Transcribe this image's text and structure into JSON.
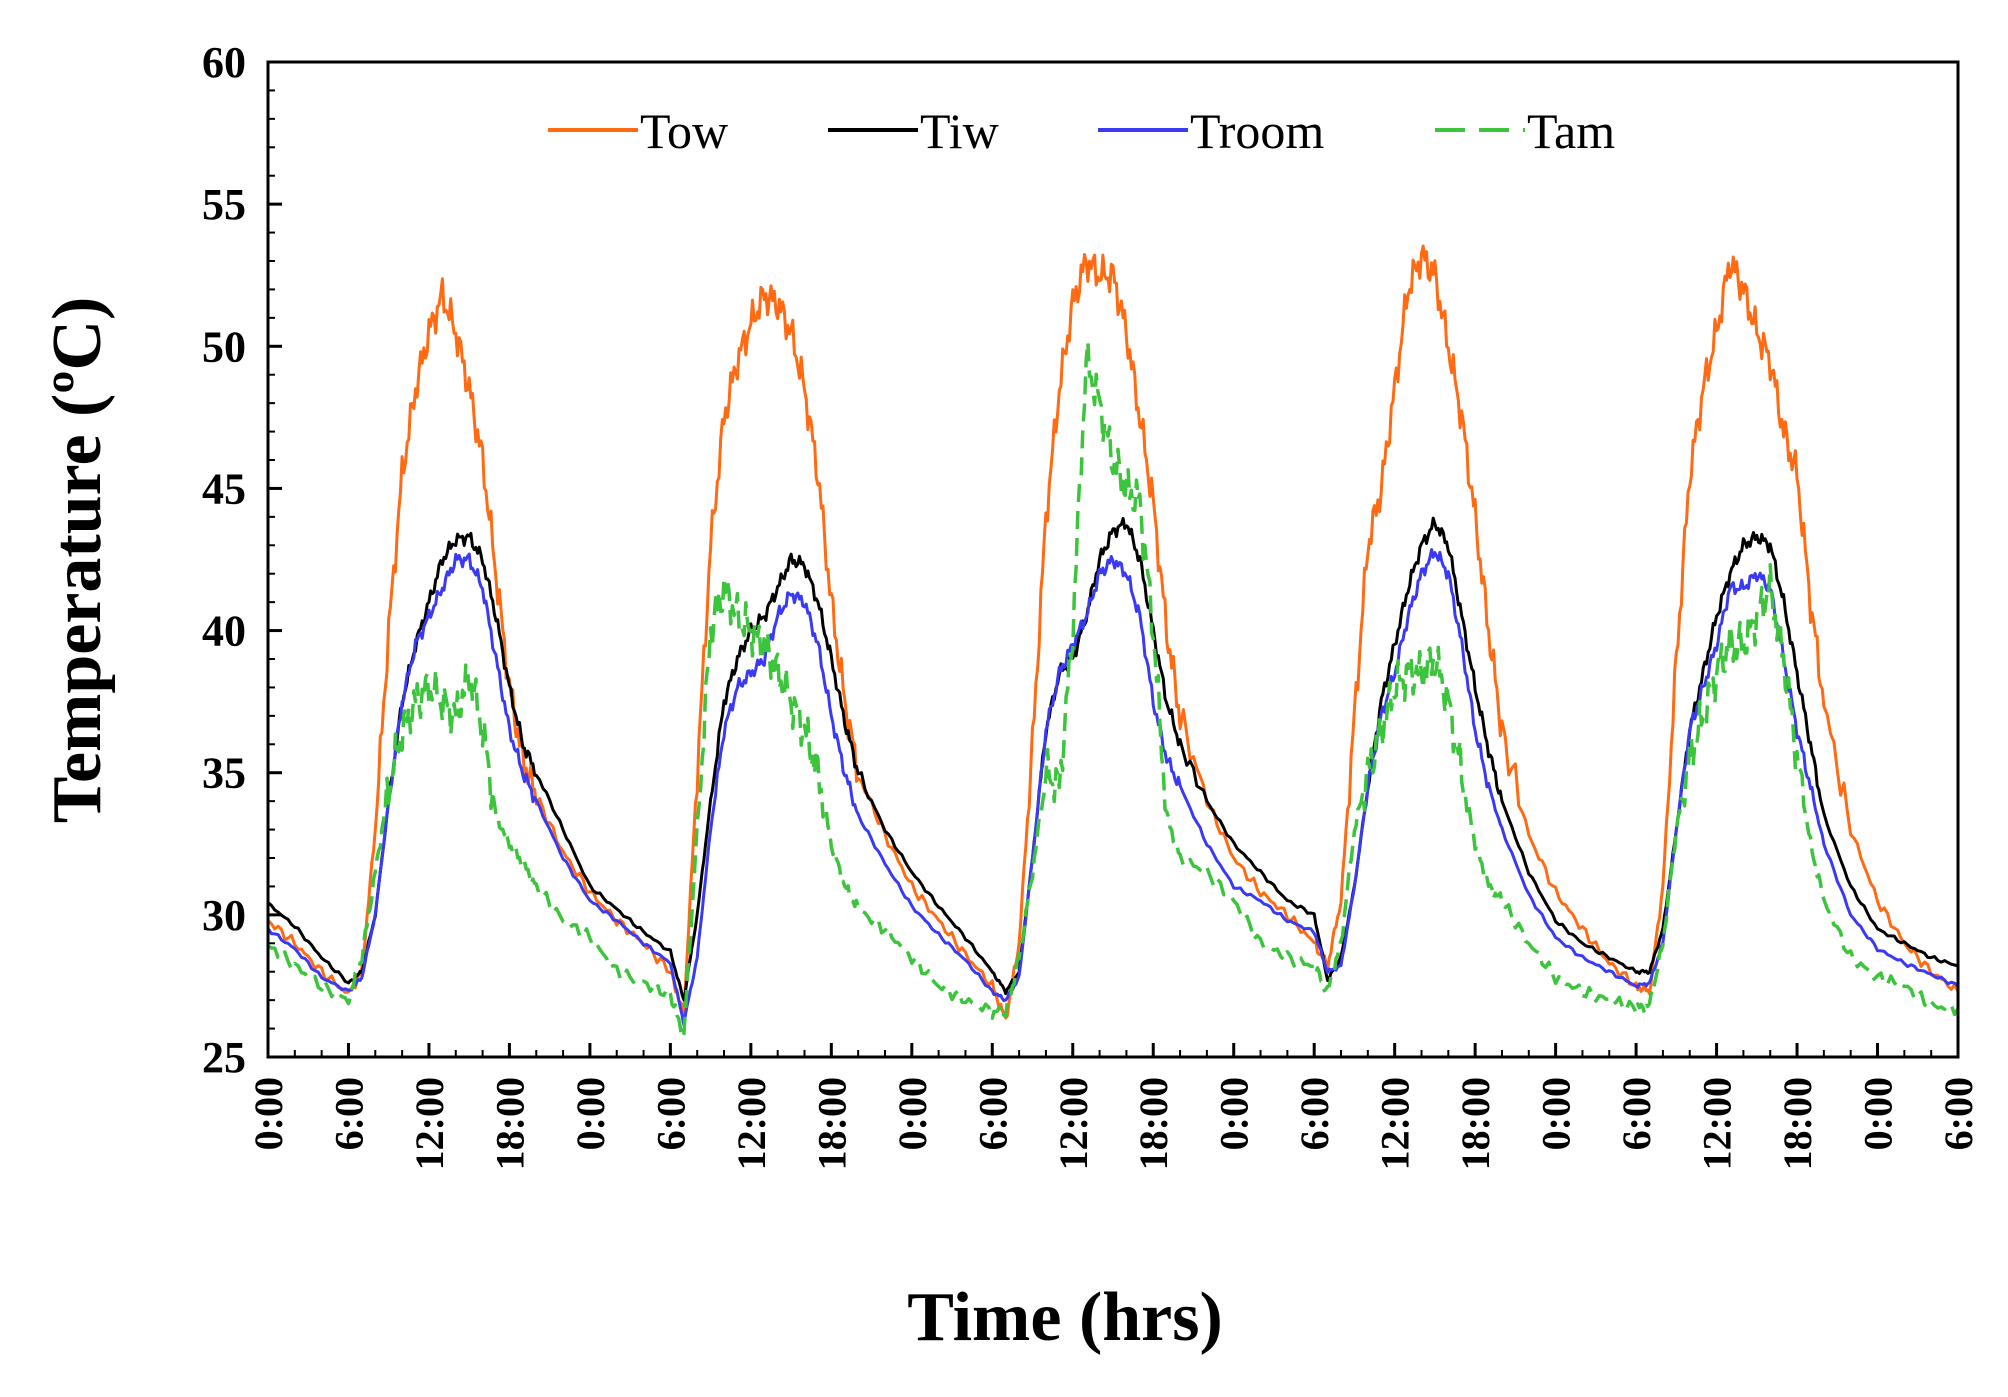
{
  "chart_data": {
    "type": "line",
    "xlabel": "Time (hrs)",
    "ylabel": "Temperature (ºC)",
    "ylim": [
      25,
      60
    ],
    "xlim_hours": [
      0,
      126
    ],
    "y_ticks": [
      "25",
      "30",
      "35",
      "40",
      "45",
      "50",
      "55",
      "60"
    ],
    "x_ticks": [
      "0:00",
      "6:00",
      "12:00",
      "18:00",
      "0:00",
      "6:00",
      "12:00",
      "18:00",
      "0:00",
      "6:00",
      "12:00",
      "18:00",
      "0:00",
      "6:00",
      "12:00",
      "18:00",
      "0:00",
      "6:00",
      "12:00",
      "18:00",
      "0:00",
      "6:00"
    ],
    "grid": false,
    "legend_position": "top",
    "x": [
      0,
      2,
      4,
      6,
      7,
      8,
      9,
      10,
      11,
      12,
      13,
      14,
      15,
      16,
      17,
      18,
      19,
      20,
      22,
      24,
      26,
      28,
      30,
      31,
      32,
      33,
      34,
      35,
      36,
      37,
      38,
      39,
      40,
      41,
      42,
      43,
      44,
      46,
      48,
      50,
      52,
      54,
      55,
      56,
      57,
      58,
      59,
      60,
      61,
      62,
      63,
      64,
      65,
      66,
      67,
      68,
      70,
      72,
      74,
      76,
      78,
      79,
      80,
      81,
      82,
      83,
      84,
      85,
      86,
      87,
      88,
      89,
      90,
      91,
      92,
      94,
      96,
      98,
      100,
      102,
      103,
      104,
      105,
      106,
      107,
      108,
      109,
      110,
      111,
      112,
      113,
      114,
      115,
      116,
      118,
      120,
      122,
      124,
      126
    ],
    "series": [
      {
        "name": "Tow",
        "color": "#ff6a13",
        "dash": "solid",
        "values": [
          29.8,
          29.0,
          28.0,
          27.2,
          28.0,
          33.0,
          40.0,
          45.5,
          48.5,
          50.5,
          51.8,
          50.5,
          48.5,
          46.0,
          42.0,
          38.0,
          35.5,
          34.2,
          32.2,
          30.8,
          29.8,
          29.0,
          28.0,
          26.5,
          35.0,
          43.0,
          47.5,
          49.5,
          50.8,
          51.8,
          51.5,
          50.5,
          48.5,
          45.5,
          41.0,
          37.5,
          35.0,
          32.8,
          31.0,
          29.8,
          28.6,
          27.5,
          26.3,
          29.0,
          36.0,
          44.0,
          48.5,
          51.5,
          53.0,
          52.5,
          52.5,
          50.5,
          47.5,
          44.5,
          40.0,
          37.0,
          34.0,
          32.0,
          30.8,
          30.0,
          29.0,
          28.2,
          30.5,
          37.0,
          43.0,
          45.0,
          48.5,
          52.0,
          53.2,
          52.5,
          50.0,
          47.5,
          44.0,
          40.0,
          36.5,
          32.8,
          30.8,
          29.5,
          28.3,
          27.5,
          27.3,
          31.0,
          39.0,
          45.5,
          48.5,
          50.5,
          53.0,
          52.0,
          50.5,
          49.5,
          47.0,
          45.5,
          41.0,
          37.5,
          33.0,
          30.5,
          29.0,
          28.0,
          27.3
        ]
      },
      {
        "name": "Tiw",
        "color": "#000000",
        "dash": "solid",
        "values": [
          30.4,
          29.6,
          28.5,
          27.6,
          28.0,
          30.0,
          34.0,
          37.5,
          39.5,
          41.0,
          42.5,
          43.2,
          43.3,
          42.5,
          40.5,
          38.0,
          36.0,
          35.0,
          33.0,
          31.0,
          30.2,
          29.4,
          28.7,
          27.0,
          30.0,
          34.0,
          37.5,
          39.0,
          40.0,
          40.5,
          41.5,
          42.5,
          42.3,
          41.0,
          39.0,
          36.8,
          35.0,
          33.0,
          31.5,
          30.3,
          29.2,
          28.0,
          27.3,
          28.0,
          32.0,
          36.5,
          38.5,
          39.0,
          40.5,
          42.5,
          43.5,
          43.8,
          42.5,
          40.0,
          37.5,
          36.0,
          34.0,
          32.5,
          31.5,
          30.5,
          30.0,
          27.7,
          28.5,
          31.0,
          34.5,
          37.5,
          39.5,
          41.5,
          43.0,
          43.8,
          43.0,
          40.5,
          38.0,
          35.8,
          34.0,
          31.5,
          29.8,
          29.0,
          28.5,
          28.0,
          28.0,
          29.5,
          33.0,
          36.5,
          38.5,
          40.5,
          42.0,
          43.0,
          43.3,
          43.0,
          41.0,
          38.5,
          36.0,
          33.5,
          31.0,
          29.5,
          29.0,
          28.5,
          28.2
        ]
      },
      {
        "name": "Troom",
        "color": "#3a3af5",
        "dash": "solid",
        "values": [
          29.5,
          28.8,
          27.8,
          27.3,
          27.8,
          30.0,
          34.0,
          37.5,
          39.5,
          40.5,
          41.5,
          42.5,
          42.5,
          41.5,
          39.0,
          36.5,
          35.0,
          34.0,
          32.0,
          30.5,
          29.8,
          29.0,
          28.3,
          26.2,
          28.5,
          33.0,
          36.5,
          38.0,
          38.5,
          39.0,
          40.5,
          41.3,
          41.0,
          39.5,
          37.0,
          35.0,
          33.5,
          31.8,
          30.3,
          29.3,
          28.4,
          27.3,
          27.0,
          27.8,
          32.0,
          36.5,
          38.5,
          39.5,
          40.5,
          42.0,
          42.5,
          42.0,
          40.5,
          37.5,
          35.5,
          34.5,
          32.5,
          31.0,
          30.5,
          29.8,
          29.4,
          28.0,
          28.2,
          31.0,
          34.5,
          37.0,
          38.5,
          40.5,
          42.0,
          42.8,
          42.0,
          39.5,
          36.5,
          34.5,
          33.0,
          30.7,
          29.2,
          28.5,
          28.0,
          27.5,
          27.6,
          29.0,
          33.0,
          36.5,
          38.0,
          39.5,
          41.5,
          41.5,
          42.0,
          41.5,
          39.0,
          36.5,
          34.5,
          32.5,
          30.0,
          28.8,
          28.3,
          27.9,
          27.5
        ]
      },
      {
        "name": "Tam",
        "color": "#3cc43c",
        "dash": "dashed",
        "values": [
          28.9,
          28.2,
          27.5,
          27.0,
          28.5,
          31.5,
          34.5,
          36.5,
          37.5,
          38.0,
          37.5,
          37.0,
          38.5,
          36.5,
          33.5,
          32.5,
          31.8,
          31.0,
          29.8,
          29.2,
          28.0,
          27.6,
          27.2,
          25.7,
          33.0,
          40.0,
          41.5,
          40.5,
          40.0,
          39.5,
          38.5,
          37.5,
          36.5,
          35.0,
          32.5,
          31.0,
          30.2,
          29.5,
          28.5,
          27.5,
          27.0,
          26.6,
          26.5,
          28.5,
          31.5,
          35.0,
          34.5,
          40.0,
          49.5,
          48.0,
          46.0,
          45.0,
          44.5,
          40.0,
          33.5,
          32.0,
          31.5,
          30.5,
          29.0,
          28.5,
          28.2,
          27.3,
          29.0,
          33.0,
          35.0,
          36.5,
          38.0,
          38.5,
          38.5,
          39.0,
          37.5,
          35.0,
          32.5,
          31.0,
          30.5,
          29.0,
          27.8,
          27.3,
          27.0,
          26.7,
          26.8,
          29.0,
          33.0,
          35.5,
          37.0,
          38.5,
          39.5,
          39.5,
          40.5,
          41.5,
          39.0,
          35.5,
          32.5,
          30.5,
          28.5,
          27.8,
          27.5,
          26.8,
          26.7
        ]
      }
    ]
  }
}
